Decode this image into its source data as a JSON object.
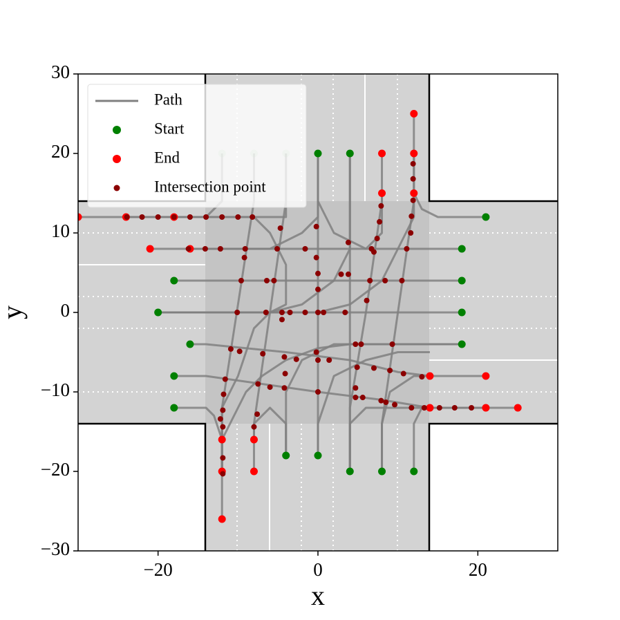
{
  "chart_data": {
    "type": "paths",
    "x_label": "x",
    "y_label": "y",
    "xlim": [
      -30,
      30
    ],
    "ylim": [
      -30,
      30
    ],
    "xticks": [
      {
        "value": -20,
        "label": "−20"
      },
      0,
      20
    ],
    "yticks": [
      {
        "value": -30,
        "label": "−30"
      },
      {
        "value": -20,
        "label": "−20"
      },
      {
        "value": -10,
        "label": "−10"
      },
      0,
      10,
      20,
      30
    ],
    "legend": "upper left",
    "series": [
      {
        "name": "Path",
        "color": "#808080",
        "paths": [
          [
            [
              21,
              12
            ],
            [
              15,
              12
            ],
            [
              13,
              13
            ],
            [
              12,
              15
            ],
            [
              12,
              25
            ]
          ],
          [
            [
              18,
              8
            ],
            [
              -21,
              8
            ]
          ],
          [
            [
              18,
              4
            ],
            [
              -18,
              4
            ]
          ],
          [
            [
              18,
              0
            ],
            [
              -20,
              0
            ]
          ],
          [
            [
              18,
              -4
            ],
            [
              4,
              -4
            ],
            [
              0,
              -4.5
            ],
            [
              -4,
              -6
            ],
            [
              -7,
              -8
            ],
            [
              -9,
              -10
            ],
            [
              -10,
              -12
            ],
            [
              -12,
              -16
            ],
            [
              -12,
              -26
            ]
          ],
          [
            [
              -16,
              -4
            ],
            [
              -14,
              -4
            ],
            [
              -4,
              -5
            ],
            [
              4,
              -6
            ],
            [
              10,
              -7.5
            ],
            [
              14,
              -8
            ],
            [
              21,
              -8
            ]
          ],
          [
            [
              -18,
              -8
            ],
            [
              -14,
              -8
            ],
            [
              0,
              -10
            ],
            [
              8,
              -11
            ],
            [
              14,
              -12
            ],
            [
              25,
              -12
            ]
          ],
          [
            [
              -18,
              -12
            ],
            [
              -14,
              -12
            ],
            [
              -13,
              -13
            ],
            [
              -12,
              -16
            ],
            [
              -12,
              -20
            ]
          ],
          [
            [
              -12,
              20
            ],
            [
              -12,
              14
            ],
            [
              -14,
              12
            ],
            [
              -30,
              12
            ]
          ],
          [
            [
              -8,
              20
            ],
            [
              -8,
              14
            ],
            [
              -12,
              -12
            ],
            [
              -12,
              -16
            ]
          ],
          [
            [
              -4,
              20
            ],
            [
              -4,
              14
            ],
            [
              -8,
              -14
            ],
            [
              -8,
              -20
            ]
          ],
          [
            [
              0,
              20
            ],
            [
              0,
              -18
            ]
          ],
          [
            [
              4,
              20
            ],
            [
              4,
              -20
            ]
          ],
          [
            [
              -4,
              -18
            ],
            [
              -4,
              -10
            ],
            [
              -2,
              -6
            ],
            [
              2,
              -4
            ],
            [
              12,
              -4
            ],
            [
              18,
              -4
            ]
          ],
          [
            [
              8,
              -20
            ],
            [
              8,
              -14
            ],
            [
              10,
              0
            ],
            [
              12,
              14
            ],
            [
              12,
              20
            ]
          ],
          [
            [
              12,
              -20
            ],
            [
              12,
              -14
            ],
            [
              13,
              -12
            ],
            [
              21,
              -12
            ]
          ],
          [
            [
              4,
              -20
            ],
            [
              4,
              -12
            ],
            [
              6,
              0
            ],
            [
              8,
              14
            ],
            [
              8,
              20
            ]
          ],
          [
            [
              -20,
              0
            ],
            [
              0,
              0
            ],
            [
              4,
              1
            ],
            [
              8,
              4
            ],
            [
              10,
              8
            ],
            [
              12,
              12
            ],
            [
              12,
              15
            ]
          ],
          [
            [
              0,
              20
            ],
            [
              0,
              12
            ],
            [
              -2,
              10
            ],
            [
              -6,
              8
            ],
            [
              -10,
              8
            ],
            [
              -16,
              8
            ]
          ],
          [
            [
              4,
              20
            ],
            [
              4,
              8
            ],
            [
              2,
              4
            ],
            [
              -2,
              1
            ],
            [
              -6,
              0
            ],
            [
              -8,
              -2
            ],
            [
              -10,
              -8
            ],
            [
              -12,
              -12
            ],
            [
              -12,
              -20
            ]
          ],
          [
            [
              -12,
              -20
            ],
            [
              -12,
              -14
            ]
          ],
          [
            [
              -4,
              20
            ],
            [
              -4,
              12
            ],
            [
              -8,
              12
            ],
            [
              -24,
              12
            ]
          ],
          [
            [
              -20,
              0
            ],
            [
              -14,
              0
            ],
            [
              -6,
              0
            ],
            [
              -4,
              1
            ],
            [
              -4,
              6
            ],
            [
              -6,
              10
            ],
            [
              -8,
              12
            ],
            [
              -18,
              12
            ]
          ],
          [
            [
              8,
              -20
            ],
            [
              8,
              -14
            ],
            [
              9,
              -10
            ],
            [
              12,
              -8
            ],
            [
              14,
              -8
            ]
          ],
          [
            [
              0,
              -18
            ],
            [
              0,
              -14
            ],
            [
              2,
              -8
            ],
            [
              6,
              -6
            ],
            [
              10,
              -5
            ],
            [
              14,
              -5
            ]
          ],
          [
            [
              4,
              -20
            ],
            [
              4,
              -14
            ],
            [
              6,
              -12
            ],
            [
              14,
              -12
            ]
          ],
          [
            [
              -4,
              -18
            ],
            [
              -4,
              -14
            ],
            [
              -6,
              -12
            ],
            [
              -8,
              -14
            ],
            [
              -8,
              -16
            ]
          ],
          [
            [
              0,
              20
            ],
            [
              0,
              14
            ],
            [
              2,
              10
            ],
            [
              6,
              8
            ],
            [
              8,
              10
            ],
            [
              8,
              15
            ]
          ]
        ]
      },
      {
        "name": "Start",
        "color": "#008000",
        "points": [
          [
            21,
            12
          ],
          [
            18,
            8
          ],
          [
            18,
            4
          ],
          [
            18,
            0
          ],
          [
            18,
            -4
          ],
          [
            -18,
            4
          ],
          [
            -20,
            0
          ],
          [
            -16,
            -4
          ],
          [
            -18,
            -8
          ],
          [
            -18,
            -12
          ],
          [
            -12,
            20
          ],
          [
            -8,
            20
          ],
          [
            -4,
            20
          ],
          [
            0,
            20
          ],
          [
            4,
            20
          ],
          [
            -4,
            -18
          ],
          [
            0,
            -18
          ],
          [
            4,
            -20
          ],
          [
            8,
            -20
          ],
          [
            12,
            -20
          ]
        ],
        "alphas": [
          1,
          1,
          1,
          1,
          1,
          1,
          1,
          1,
          1,
          1,
          0.15,
          0.15,
          0.15,
          1,
          1,
          1,
          1,
          1,
          1,
          1
        ]
      },
      {
        "name": "End",
        "color": "#ff0000",
        "points": [
          [
            -30,
            12
          ],
          [
            -24,
            12
          ],
          [
            -18,
            12
          ],
          [
            -21,
            8
          ],
          [
            -16,
            8
          ],
          [
            8,
            20
          ],
          [
            12,
            20
          ],
          [
            12,
            25
          ],
          [
            8,
            15
          ],
          [
            12,
            15
          ],
          [
            14,
            -8
          ],
          [
            21,
            -8
          ],
          [
            14,
            -12
          ],
          [
            21,
            -12
          ],
          [
            25,
            -12
          ],
          [
            -12,
            -16
          ],
          [
            -12,
            -20
          ],
          [
            -12,
            -26
          ],
          [
            -8,
            -16
          ],
          [
            -8,
            -20
          ]
        ]
      },
      {
        "name": "Intersection point",
        "color": "#8b0000",
        "points": [
          [
            -23.9,
            12
          ],
          [
            -22,
            12
          ],
          [
            -20,
            12
          ],
          [
            -18,
            12
          ],
          [
            -16,
            12
          ],
          [
            -14,
            12
          ],
          [
            -12,
            12
          ],
          [
            -10,
            12
          ],
          [
            -8.2,
            12
          ],
          [
            -4.7,
            10.6
          ],
          [
            -0.2,
            10.8
          ],
          [
            -16.2,
            8
          ],
          [
            -14.1,
            8
          ],
          [
            -12.2,
            8
          ],
          [
            -9.1,
            8
          ],
          [
            -5.1,
            8
          ],
          [
            -1.6,
            8
          ],
          [
            6.7,
            8
          ],
          [
            11.1,
            8
          ],
          [
            -9.2,
            6.9
          ],
          [
            -0.2,
            6.9
          ],
          [
            3.8,
            8.8
          ],
          [
            7,
            7.6
          ],
          [
            7.4,
            9.3
          ],
          [
            -9.6,
            4
          ],
          [
            -6.4,
            4
          ],
          [
            -5.5,
            4
          ],
          [
            2.9,
            4.8
          ],
          [
            3.8,
            4.8
          ],
          [
            6.5,
            4
          ],
          [
            8.4,
            4
          ],
          [
            10.5,
            4
          ],
          [
            0,
            4.9
          ],
          [
            0,
            2.9
          ],
          [
            -10.1,
            0
          ],
          [
            -6.5,
            0
          ],
          [
            -4.5,
            0
          ],
          [
            -3.5,
            0
          ],
          [
            -1.6,
            0
          ],
          [
            0,
            0
          ],
          [
            0.7,
            0
          ],
          [
            3.4,
            0
          ],
          [
            -4.5,
            -0.9
          ],
          [
            6.1,
            1.5
          ],
          [
            4.7,
            -4
          ],
          [
            5.4,
            -4
          ],
          [
            9.3,
            -4
          ],
          [
            -10.9,
            -4.6
          ],
          [
            -9.8,
            -4.9
          ],
          [
            -6.9,
            -5.2
          ],
          [
            -4.2,
            -5.6
          ],
          [
            -2.7,
            -5.9
          ],
          [
            -0.2,
            -5
          ],
          [
            0,
            -6
          ],
          [
            1.4,
            -6
          ],
          [
            4.9,
            -6.9
          ],
          [
            7,
            -7
          ],
          [
            9,
            -7.3
          ],
          [
            10.7,
            -7.7
          ],
          [
            13,
            -8.1
          ],
          [
            -4.1,
            -7.7
          ],
          [
            -7.5,
            -9
          ],
          [
            -6,
            -9.4
          ],
          [
            -4.2,
            -9.5
          ],
          [
            -11.6,
            -8.4
          ],
          [
            0,
            -10
          ],
          [
            4.7,
            -9.5
          ],
          [
            4.7,
            -10.7
          ],
          [
            5.6,
            -10.7
          ],
          [
            7.9,
            -11.1
          ],
          [
            8.5,
            -11.3
          ],
          [
            9.6,
            -11.6
          ],
          [
            11.7,
            -12
          ],
          [
            13.3,
            -12
          ],
          [
            15.2,
            -12
          ],
          [
            17.1,
            -12
          ],
          [
            19.2,
            -12
          ],
          [
            -11.8,
            -10.3
          ],
          [
            -11.9,
            -12.3
          ],
          [
            -12.2,
            -13.4
          ],
          [
            -11.9,
            -14.4
          ],
          [
            -7.6,
            -12.8
          ],
          [
            -8,
            -14.4
          ],
          [
            -11.9,
            -18.3
          ],
          [
            -11.9,
            -20.3
          ],
          [
            11.9,
            18.7
          ],
          [
            11.9,
            16.8
          ],
          [
            11.9,
            14.1
          ],
          [
            11.7,
            12.1
          ],
          [
            11.6,
            10
          ],
          [
            7.9,
            13.4
          ],
          [
            7.7,
            11.4
          ]
        ]
      }
    ]
  }
}
